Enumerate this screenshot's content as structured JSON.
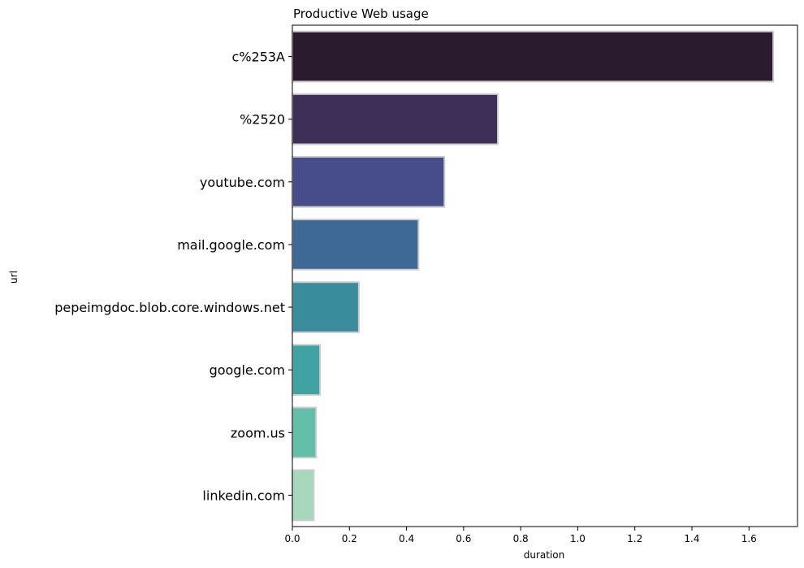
{
  "chart_data": {
    "type": "bar",
    "orientation": "horizontal",
    "title": "Productive Web usage",
    "xlabel": "duration",
    "ylabel": "url",
    "categories": [
      "c%253A",
      "%2520",
      "youtube.com",
      "mail.google.com",
      "pepeimgdoc.blob.core.windows.net",
      "google.com",
      "zoom.us",
      "linkedin.com"
    ],
    "values": [
      1.685,
      0.72,
      0.533,
      0.442,
      0.233,
      0.097,
      0.083,
      0.075
    ],
    "colors": [
      "#2a1c2e",
      "#3e2f58",
      "#474d89",
      "#3e6895",
      "#3a8b9c",
      "#41a3a1",
      "#63bea8",
      "#a7d8bb"
    ],
    "bar_edge_color": "#cccccc",
    "xlim": [
      0,
      1.77
    ],
    "xticks": [
      0.0,
      0.2,
      0.4,
      0.6,
      0.8,
      1.0,
      1.2,
      1.4,
      1.6
    ],
    "xtick_labels": [
      "0.0",
      "0.2",
      "0.4",
      "0.6",
      "0.8",
      "1.0",
      "1.2",
      "1.4",
      "1.6"
    ],
    "grid": false,
    "legend": "none"
  }
}
